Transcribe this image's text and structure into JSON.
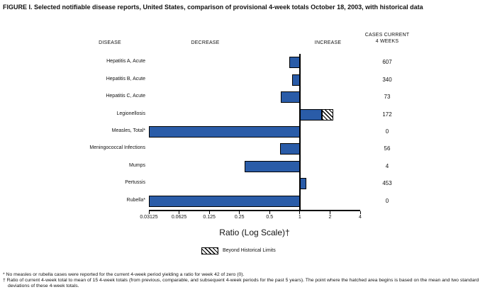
{
  "title": "FIGURE I. Selected notifiable disease reports, United States, comparison of provisional 4-week totals October 18, 2003, with historical data",
  "headers": {
    "disease": "DISEASE",
    "decrease": "DECREASE",
    "increase": "INCREASE",
    "cases_line1": "CASES CURRENT",
    "cases_line2": "4 WEEKS"
  },
  "chart_data": {
    "type": "bar",
    "orientation": "horizontal",
    "scale": "log2",
    "x_min": 0.03125,
    "x_max": 4,
    "baseline_ratio": 1,
    "x_ticks": [
      "0.03125",
      "0.0625",
      "0.125",
      "0.25",
      "0.5",
      "1",
      "2",
      "4"
    ],
    "xlabel": "Ratio (Log Scale)†",
    "bar_color": "#2A5CA8",
    "rows": [
      {
        "disease": "Hepatitis A, Acute",
        "ratio": 0.79,
        "cases": 607,
        "beyond_historical_limits": false
      },
      {
        "disease": "Hepatitis B, Acute",
        "ratio": 0.84,
        "cases": 340,
        "beyond_historical_limits": false
      },
      {
        "disease": "Hepatitis C, Acute",
        "ratio": 0.65,
        "cases": 73,
        "beyond_historical_limits": false
      },
      {
        "disease": "Legionellosis",
        "ratio": 2.15,
        "cases": 172,
        "beyond_historical_limits": true,
        "hatch_start": 1.66
      },
      {
        "disease": "Measles, Total*",
        "ratio": 0,
        "cases": 0,
        "beyond_historical_limits": false
      },
      {
        "disease": "Meningococcal Infections",
        "ratio": 0.64,
        "cases": 56,
        "beyond_historical_limits": false
      },
      {
        "disease": "Mumps",
        "ratio": 0.28,
        "cases": 4,
        "beyond_historical_limits": false
      },
      {
        "disease": "Pertussis",
        "ratio": 1.17,
        "cases": 453,
        "beyond_historical_limits": false
      },
      {
        "disease": "Rubella*",
        "ratio": 0,
        "cases": 0,
        "beyond_historical_limits": false
      }
    ],
    "legend_position": "bottom",
    "grid": false
  },
  "legend": {
    "beyond_label": "Beyond Historical Limits"
  },
  "footnotes": [
    "* No measles or rubella cases were reported for the current 4-week period yielding a ratio for week 42 of zero (0).",
    "† Ratio of current 4-week total to mean of 15 4-week totals (from previous, comparable, and subsequent 4-week periods for the past 5 years). The point where the hatched area begins is based on the mean and two standard deviations of these 4-week totals."
  ]
}
